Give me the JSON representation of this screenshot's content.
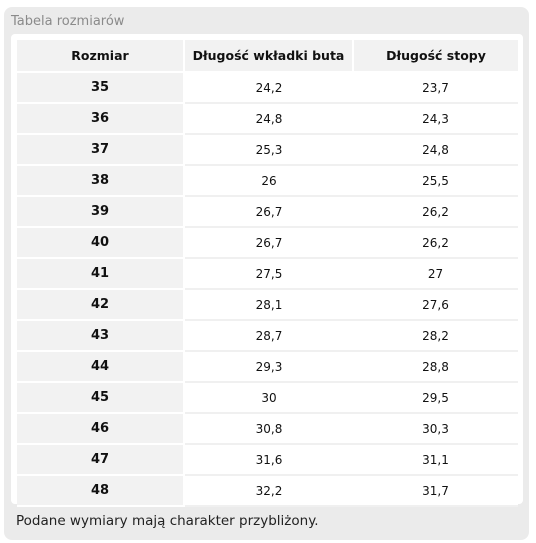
{
  "title": "Tabela rozmiarów",
  "table": {
    "headers": [
      "Rozmiar",
      "Długość wkładki buta",
      "Długość stopy"
    ],
    "rows": [
      [
        "35",
        "24,2",
        "23,7"
      ],
      [
        "36",
        "24,8",
        "24,3"
      ],
      [
        "37",
        "25,3",
        "24,8"
      ],
      [
        "38",
        "26",
        "25,5"
      ],
      [
        "39",
        "26,7",
        "26,2"
      ],
      [
        "40",
        "26,7",
        "26,2"
      ],
      [
        "41",
        "27,5",
        "27"
      ],
      [
        "42",
        "28,1",
        "27,6"
      ],
      [
        "43",
        "28,7",
        "28,2"
      ],
      [
        "44",
        "29,3",
        "28,8"
      ],
      [
        "45",
        "30",
        "29,5"
      ],
      [
        "46",
        "30,8",
        "30,3"
      ],
      [
        "47",
        "31,6",
        "31,1"
      ],
      [
        "48",
        "32,2",
        "31,7"
      ]
    ]
  },
  "note": "Podane wymiary mają charakter przybliżony.",
  "colors": {
    "panel_background": "#ebebeb",
    "header_background": "#f2f2f2",
    "title_text": "#8a8a8a"
  }
}
